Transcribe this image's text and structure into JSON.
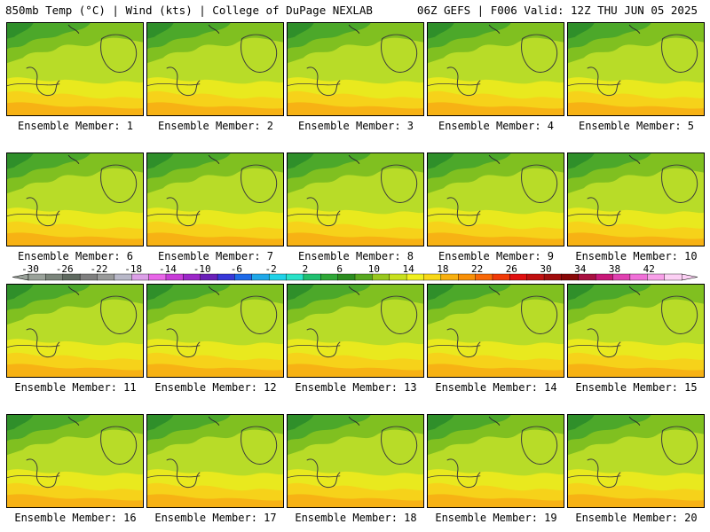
{
  "header": {
    "left": "850mb Temp (°C) | Wind (kts) | College of DuPage NEXLAB",
    "right": "06Z GEFS | F006 Valid: 12Z THU JUN 05 2025"
  },
  "colorbar": {
    "labels": [
      "-30",
      "-26",
      "-22",
      "-18",
      "-14",
      "-10",
      "-6",
      "-2",
      "2",
      "6",
      "10",
      "14",
      "18",
      "22",
      "26",
      "30",
      "34",
      "38",
      "42"
    ],
    "colors": [
      "#9aa29a",
      "#7b857b",
      "#5f6a60",
      "#7f7f7f",
      "#999a9a",
      "#b8b8c8",
      "#dca0e8",
      "#e866e8",
      "#c83cd8",
      "#9c28c8",
      "#6a20b8",
      "#3838d8",
      "#1e6ae8",
      "#20a8e8",
      "#20d2e8",
      "#2ae2c8",
      "#20c070",
      "#30a838",
      "#2c8c20",
      "#58a820",
      "#98c81e",
      "#c8e01e",
      "#f0f020",
      "#f8d818",
      "#f8b010",
      "#f89008",
      "#f86808",
      "#f03a08",
      "#e01010",
      "#c01010",
      "#a00c0c",
      "#880808",
      "#a81040",
      "#c81878",
      "#e040b0",
      "#f070d8",
      "#f8a0e8",
      "#fcd0f4"
    ]
  },
  "members": [
    {
      "label": "Ensemble Member: 1"
    },
    {
      "label": "Ensemble Member: 2"
    },
    {
      "label": "Ensemble Member: 3"
    },
    {
      "label": "Ensemble Member: 4"
    },
    {
      "label": "Ensemble Member: 5"
    },
    {
      "label": "Ensemble Member: 6"
    },
    {
      "label": "Ensemble Member: 7"
    },
    {
      "label": "Ensemble Member: 8"
    },
    {
      "label": "Ensemble Member: 9"
    },
    {
      "label": "Ensemble Member: 10"
    },
    {
      "label": "Ensemble Member: 11"
    },
    {
      "label": "Ensemble Member: 12"
    },
    {
      "label": "Ensemble Member: 13"
    },
    {
      "label": "Ensemble Member: 14"
    },
    {
      "label": "Ensemble Member: 15"
    },
    {
      "label": "Ensemble Member: 16"
    },
    {
      "label": "Ensemble Member: 17"
    },
    {
      "label": "Ensemble Member: 18"
    },
    {
      "label": "Ensemble Member: 19"
    },
    {
      "label": "Ensemble Member: 20"
    }
  ]
}
